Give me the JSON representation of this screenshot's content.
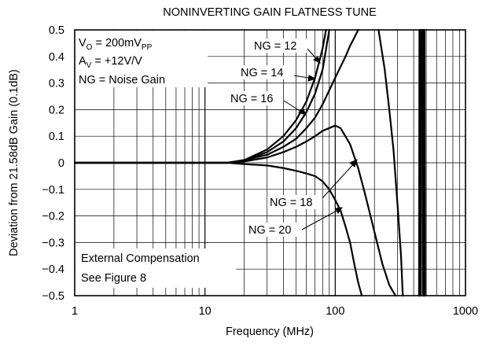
{
  "chart_data": {
    "type": "line",
    "title": "NONINVERTING GAIN FLATNESS TUNE",
    "xlabel": "Frequency (MHz)",
    "ylabel": "Deviation from 21.58dB Gain (0.1dB)",
    "x_scale": "log",
    "xlim": [
      1,
      1000
    ],
    "ylim": [
      -0.5,
      0.5
    ],
    "x_ticks": [
      "1",
      "10",
      "100",
      "1000"
    ],
    "y_ticks": [
      "0.5",
      "0.4",
      "0.3",
      "0.2",
      "0.1",
      "0",
      "−0.1",
      "−0.2",
      "−0.3",
      "−0.4",
      "−0.5"
    ],
    "grid": true,
    "annotation_box": {
      "vo_main": "V",
      "vo_sub": "O",
      "vo_text": " = 200mV",
      "vo_unit_sub": "PP",
      "av_main": "A",
      "av_sub": "V",
      "av_text": " = +12V/V",
      "ng_text": "NG = Noise Gain"
    },
    "note_lines": [
      "External Compensation",
      "See Figure 8"
    ],
    "series": [
      {
        "name": "NG = 12",
        "x": [
          1,
          10,
          15,
          20,
          30,
          40,
          50,
          60,
          70,
          80,
          85
        ],
        "y": [
          0,
          0,
          0,
          0.01,
          0.05,
          0.1,
          0.16,
          0.23,
          0.32,
          0.43,
          0.5
        ]
      },
      {
        "name": "NG = 14",
        "x": [
          1,
          10,
          15,
          20,
          30,
          40,
          50,
          60,
          70,
          80,
          90
        ],
        "y": [
          0,
          0,
          0,
          0.01,
          0.04,
          0.08,
          0.13,
          0.19,
          0.26,
          0.35,
          0.5
        ]
      },
      {
        "name": "NG = 16",
        "x": [
          1,
          10,
          15,
          20,
          30,
          40,
          50,
          60,
          70,
          80,
          100,
          120,
          130,
          140,
          150
        ],
        "y": [
          0,
          0,
          0,
          0.01,
          0.03,
          0.06,
          0.09,
          0.13,
          0.17,
          0.22,
          0.32,
          0.4,
          0.44,
          0.47,
          0.5
        ]
      },
      {
        "name": "NG = 18",
        "x": [
          1,
          10,
          15,
          20,
          30,
          40,
          50,
          60,
          70,
          80,
          100,
          110,
          130,
          150,
          170,
          200,
          230,
          260,
          290
        ],
        "y": [
          0,
          0,
          0,
          0.005,
          0.02,
          0.04,
          0.06,
          0.08,
          0.1,
          0.12,
          0.14,
          0.13,
          0.07,
          -0.02,
          -0.12,
          -0.26,
          -0.38,
          -0.46,
          -0.5
        ]
      },
      {
        "name": "NG = 20",
        "x": [
          1,
          10,
          15,
          20,
          30,
          40,
          50,
          60,
          70,
          80,
          90,
          100,
          110,
          120,
          130,
          140,
          150,
          160
        ],
        "y": [
          0,
          0,
          0,
          -0.005,
          -0.01,
          -0.02,
          -0.03,
          -0.04,
          -0.05,
          -0.07,
          -0.1,
          -0.14,
          -0.18,
          -0.24,
          -0.3,
          -0.38,
          -0.45,
          -0.5
        ]
      },
      {
        "name": "",
        "x": [
          215,
          240,
          260,
          280,
          300,
          320,
          330
        ],
        "y": [
          0.5,
          0.35,
          0.2,
          0.05,
          -0.15,
          -0.35,
          -0.5
        ]
      },
      {
        "name": "",
        "x": [
          440,
          443,
          446,
          449,
          452,
          455
        ],
        "y": [
          -0.5,
          0.5,
          -0.5,
          0.5,
          -0.5,
          0.5
        ]
      },
      {
        "name": "",
        "x": [
          465,
          470,
          475,
          480,
          485,
          490
        ],
        "y": [
          0.5,
          -0.5,
          0.5,
          -0.5,
          0.5,
          -0.5
        ]
      }
    ]
  }
}
